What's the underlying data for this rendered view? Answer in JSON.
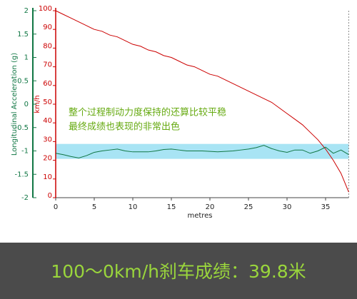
{
  "chart_data": {
    "type": "line",
    "x_label": "metres",
    "y_label": "km/h",
    "y2_label": "Longitudinal Acceleration (g)",
    "annotations": [
      "整个过程制动力度保持的还算比较平稳",
      "最终成绩也表现的非常出色"
    ],
    "banner": "100～0km/h刹车成绩：39.8米",
    "x": [
      0,
      1,
      2,
      3,
      4,
      5,
      6,
      7,
      8,
      9,
      10,
      11,
      12,
      13,
      14,
      15,
      16,
      17,
      18,
      19,
      20,
      21,
      22,
      23,
      24,
      25,
      26,
      27,
      28,
      29,
      30,
      31,
      32,
      33,
      34,
      35,
      36,
      37,
      38
    ],
    "series": [
      {
        "name": "km/h",
        "color": "#cc0000",
        "values": [
          100,
          98,
          96,
          94,
          92,
          90,
          89,
          87,
          86,
          84,
          82,
          81,
          79,
          78,
          76,
          75,
          73,
          71,
          70,
          68,
          66,
          65,
          63,
          61,
          59,
          57,
          55,
          53,
          51,
          48,
          45,
          42,
          39,
          35,
          31,
          26,
          20,
          13,
          3
        ]
      },
      {
        "name": "Longitudinal Acceleration (g)",
        "color": "#117744",
        "axis": "y2",
        "values": [
          -1.05,
          -1.08,
          -1.12,
          -1.15,
          -1.1,
          -1.03,
          -1.0,
          -0.98,
          -0.96,
          -1.0,
          -1.02,
          -1.02,
          -1.02,
          -1.0,
          -0.97,
          -0.96,
          -0.98,
          -1.0,
          -1.0,
          -1.0,
          -1.01,
          -1.02,
          -1.01,
          -1.0,
          -0.98,
          -0.96,
          -0.93,
          -0.88,
          -0.95,
          -1.0,
          -1.03,
          -0.98,
          -0.98,
          -1.05,
          -1.0,
          -0.92,
          -1.05,
          -0.98,
          -1.08
        ]
      }
    ],
    "band": [
      -1.17,
      -0.85
    ],
    "band_color": "#a8e4f4",
    "xlim": [
      0,
      38
    ],
    "xticks": [
      0,
      5,
      10,
      15,
      20,
      25,
      30,
      35
    ],
    "ylim": [
      0,
      100
    ],
    "yticks": [
      0,
      10,
      20,
      30,
      40,
      50,
      60,
      70,
      80,
      90,
      100
    ],
    "y2lim": [
      -2,
      2
    ],
    "y2ticks": [
      -2,
      -1.5,
      -1,
      -0.5,
      0,
      0.5,
      1,
      1.5,
      2
    ]
  }
}
